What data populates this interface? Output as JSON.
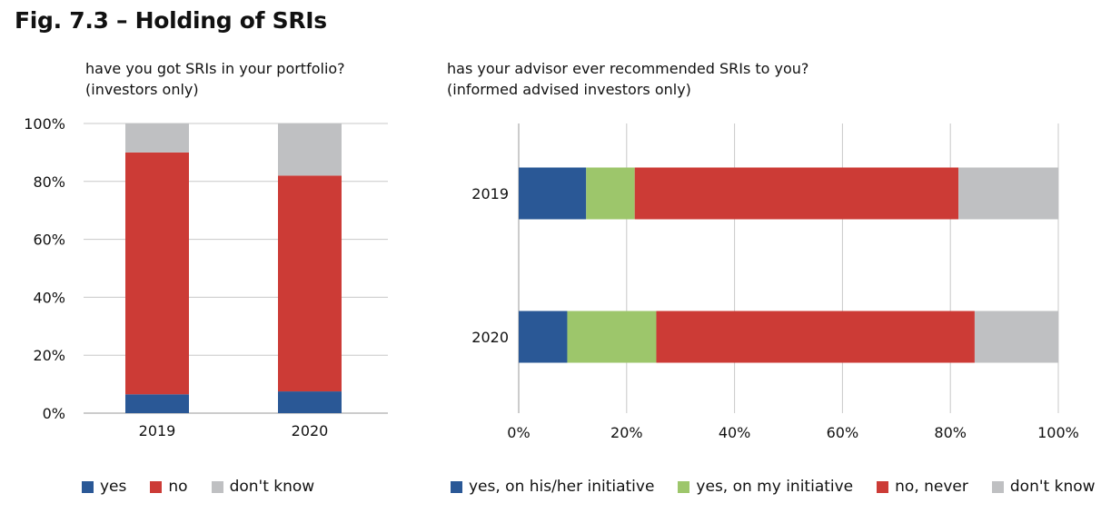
{
  "figure_title": "Fig. 7.3 – Holding of SRIs",
  "colors": {
    "yes": "#2a5896",
    "no": "#cc3b36",
    "dont_know": "#bfc0c2",
    "yes_my_initiative": "#9dc66b",
    "grid": "#c8c8c8"
  },
  "chart_data": [
    {
      "type": "bar",
      "subtitle_line1": "have you got SRIs in your portfolio?",
      "subtitle_line2": "(investors only)",
      "orientation": "vertical",
      "stacked": true,
      "categories": [
        "2019",
        "2020"
      ],
      "series": [
        {
          "name": "yes",
          "values": [
            6.5,
            7.5
          ]
        },
        {
          "name": "no",
          "values": [
            83.5,
            74.5
          ]
        },
        {
          "name": "don't know",
          "values": [
            10,
            18
          ]
        }
      ],
      "ylim": [
        0,
        100
      ],
      "yticks": [
        "0%",
        "20%",
        "40%",
        "60%",
        "80%",
        "100%"
      ],
      "grid": true,
      "legend_position": "bottom"
    },
    {
      "type": "bar",
      "subtitle_line1": "has your advisor ever recommended SRIs to you?",
      "subtitle_line2": "(informed advised investors only)",
      "orientation": "horizontal",
      "stacked": true,
      "categories": [
        "2019",
        "2020"
      ],
      "series": [
        {
          "name": "yes, on his/her initiative",
          "values": [
            12.5,
            9
          ]
        },
        {
          "name": "yes, on my initiative",
          "values": [
            9,
            16.5
          ]
        },
        {
          "name": "no, never",
          "values": [
            60,
            59
          ]
        },
        {
          "name": "don't know",
          "values": [
            18.5,
            15.5
          ]
        }
      ],
      "xlim": [
        0,
        100
      ],
      "xticks": [
        "0%",
        "20%",
        "40%",
        "60%",
        "80%",
        "100%"
      ],
      "grid": true,
      "legend_position": "bottom"
    }
  ]
}
